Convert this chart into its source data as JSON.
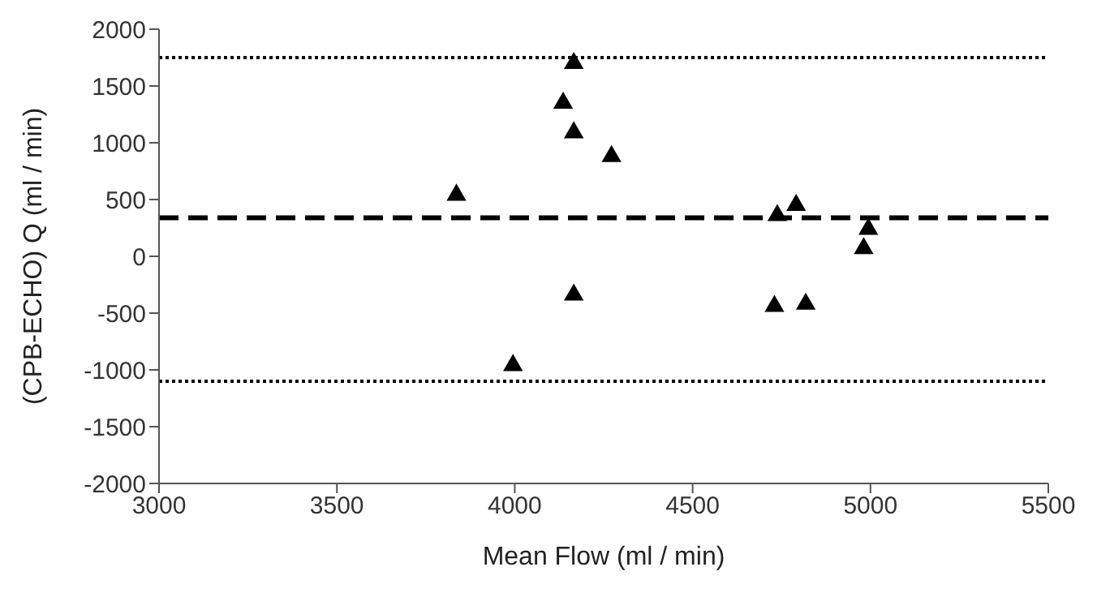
{
  "chart_data": {
    "type": "scatter",
    "xlabel": "Mean Flow (ml / min)",
    "ylabel": "(CPB-ECHO) Q  (ml / min)",
    "x": [
      4166,
      4136,
      4166,
      4272,
      3836,
      4166,
      3995,
      4730,
      4818,
      4738,
      4791,
      4994,
      4981
    ],
    "series": [
      {
        "color": "#000000",
        "values": [
          1700,
          1350,
          1090,
          880,
          540,
          -340,
          -960,
          -440,
          -420,
          360,
          450,
          240,
          70
        ]
      }
    ],
    "xlim": [
      3000,
      5500
    ],
    "xticks": [
      3000,
      3500,
      4000,
      4500,
      5000,
      5500
    ],
    "ylim": [
      -2000,
      2000
    ],
    "yticks": [
      -2000,
      -1500,
      -1000,
      -500,
      0,
      500,
      1000,
      1500,
      2000
    ],
    "marker": "triangle",
    "grid": false,
    "legend": false,
    "ref_lines": [
      {
        "axis": "y",
        "value": 1750,
        "line_style": "dotted",
        "color": "#000000"
      },
      {
        "axis": "y",
        "value": 340,
        "line_style": "dashed",
        "color": "#000000"
      },
      {
        "axis": "y",
        "value": -1100,
        "line_style": "dotted",
        "color": "#000000"
      }
    ]
  }
}
